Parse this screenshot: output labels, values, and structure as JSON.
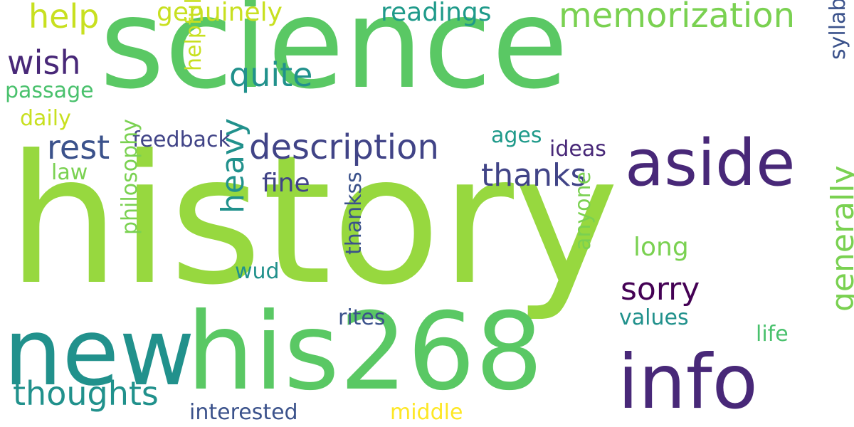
{
  "palette": {
    "lime": "#97d83f",
    "green": "#5ac864",
    "green2": "#4ac16d",
    "teal": "#21918c",
    "teal2": "#1f9a8a",
    "blue": "#3b528b",
    "blue2": "#414487",
    "purple": "#482878",
    "darkpurple": "#440154",
    "yellow": "#c8e020",
    "yellow2": "#fde725",
    "lightgreen": "#7ad151"
  },
  "words": [
    {
      "text": "history",
      "color": "lime"
    },
    {
      "text": "science",
      "color": "green"
    },
    {
      "text": "his268",
      "color": "green"
    },
    {
      "text": "new",
      "color": "teal"
    },
    {
      "text": "info",
      "color": "purple"
    },
    {
      "text": "aside",
      "color": "purple"
    },
    {
      "text": "memorization",
      "color": "lightgreen"
    },
    {
      "text": "description",
      "color": "blue2"
    },
    {
      "text": "thoughts",
      "color": "teal"
    },
    {
      "text": "thanks",
      "color": "blue2"
    },
    {
      "text": "sorry",
      "color": "darkpurple"
    },
    {
      "text": "generally",
      "color": "lightgreen"
    },
    {
      "text": "help",
      "color": "yellow"
    },
    {
      "text": "wish",
      "color": "purple"
    },
    {
      "text": "quite",
      "color": "teal"
    },
    {
      "text": "rest",
      "color": "blue"
    },
    {
      "text": "heavy",
      "color": "teal"
    },
    {
      "text": "genuinely",
      "color": "yellow"
    },
    {
      "text": "readings",
      "color": "teal2"
    },
    {
      "text": "long",
      "color": "lightgreen"
    },
    {
      "text": "fine",
      "color": "blue2"
    },
    {
      "text": "passage",
      "color": "green2"
    },
    {
      "text": "daily",
      "color": "yellow"
    },
    {
      "text": "feedback",
      "color": "blue2"
    },
    {
      "text": "ideas",
      "color": "purple"
    },
    {
      "text": "ages",
      "color": "teal2"
    },
    {
      "text": "law",
      "color": "lightgreen"
    },
    {
      "text": "philosophy",
      "color": "lightgreen"
    },
    {
      "text": "helpful",
      "color": "yellow"
    },
    {
      "text": "syllabus",
      "color": "blue"
    },
    {
      "text": "anyone",
      "color": "lightgreen"
    },
    {
      "text": "thankss",
      "color": "blue"
    },
    {
      "text": "wud",
      "color": "teal"
    },
    {
      "text": "rites",
      "color": "blue"
    },
    {
      "text": "values",
      "color": "teal"
    },
    {
      "text": "life",
      "color": "green2"
    },
    {
      "text": "interested",
      "color": "blue"
    },
    {
      "text": "middle",
      "color": "yellow2"
    }
  ]
}
